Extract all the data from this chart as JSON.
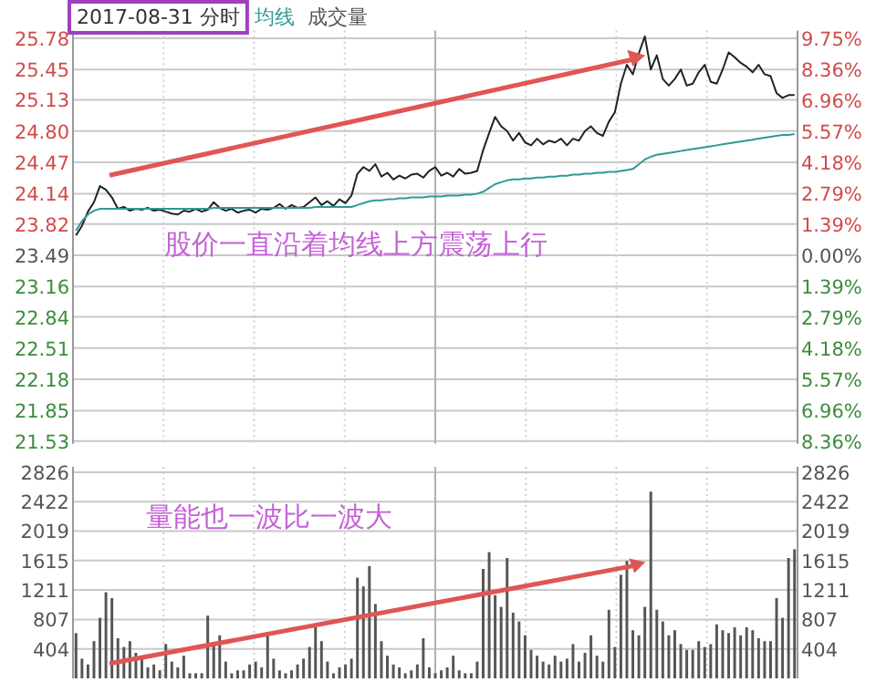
{
  "chart_data": [
    {
      "type": "line",
      "title": "2017-08-31 分时",
      "legend": "top",
      "grid": true,
      "ylim": [
        21.5,
        25.86
      ],
      "y2lim": [
        -8.47,
        10.09
      ],
      "yticks": [
        {
          "value": 25.78,
          "label": "25.78"
        },
        {
          "value": 25.45,
          "label": "25.45"
        },
        {
          "value": 25.13,
          "label": "25.13"
        },
        {
          "value": 24.8,
          "label": "24.80"
        },
        {
          "value": 24.47,
          "label": "24.47"
        },
        {
          "value": 24.14,
          "label": "24.14"
        },
        {
          "value": 23.82,
          "label": "23.82"
        },
        {
          "value": 23.49,
          "label": "23.49"
        },
        {
          "value": 23.16,
          "label": "23.16"
        },
        {
          "value": 22.84,
          "label": "22.84"
        },
        {
          "value": 22.51,
          "label": "22.51"
        },
        {
          "value": 22.18,
          "label": "22.18"
        },
        {
          "value": 21.85,
          "label": "21.85"
        },
        {
          "value": 21.53,
          "label": "21.53"
        }
      ],
      "y2ticks": [
        {
          "value": 9.75,
          "label": "9.75%"
        },
        {
          "value": 8.36,
          "label": "8.36%"
        },
        {
          "value": 6.96,
          "label": "6.96%"
        },
        {
          "value": 5.57,
          "label": "5.57%"
        },
        {
          "value": 4.18,
          "label": "4.18%"
        },
        {
          "value": 2.79,
          "label": "2.79%"
        },
        {
          "value": 1.39,
          "label": "1.39%"
        },
        {
          "value": 0,
          "label": "0.00%"
        },
        {
          "value": -1.39,
          "label": "1.39%"
        },
        {
          "value": -2.79,
          "label": "2.79%"
        },
        {
          "value": -4.18,
          "label": "4.18%"
        },
        {
          "value": -5.57,
          "label": "5.57%"
        },
        {
          "value": -6.96,
          "label": "6.96%"
        },
        {
          "value": -8.36,
          "label": "8.36%"
        }
      ],
      "annotations": [
        "股价一直沿着均线上方震荡上行"
      ],
      "categories": [
        null,
        null,
        null,
        null,
        null,
        null,
        null,
        null,
        null,
        null,
        null,
        null,
        null,
        null,
        null,
        null,
        null,
        null,
        null,
        null,
        null,
        null,
        null,
        null,
        null,
        null,
        null,
        null,
        null,
        null,
        null,
        null,
        null,
        null,
        null,
        null,
        null,
        null,
        null,
        null,
        null,
        null,
        null,
        null,
        null,
        null,
        null,
        null,
        null,
        null,
        null,
        null,
        null,
        null,
        null,
        null,
        null,
        null,
        null,
        null,
        null,
        null,
        null,
        null,
        null,
        null,
        null,
        null,
        null,
        null,
        null,
        null,
        null,
        null,
        null,
        null,
        null,
        null,
        null,
        null,
        null,
        null,
        null,
        null,
        null,
        null,
        null,
        null,
        null,
        null,
        null,
        null,
        null,
        null,
        null,
        null,
        null,
        null,
        null,
        null,
        null,
        null,
        null,
        null,
        null,
        null,
        null,
        null,
        null,
        null,
        null,
        null,
        null,
        null,
        null,
        null,
        null,
        null,
        null,
        null,
        null
      ],
      "series": [
        {
          "color": "#222222",
          "values": [
            23.7,
            23.8,
            23.95,
            24.05,
            24.22,
            24.18,
            24.1,
            23.98,
            24.0,
            23.96,
            23.98,
            23.97,
            23.99,
            23.96,
            23.97,
            23.95,
            23.93,
            23.92,
            23.96,
            23.95,
            23.98,
            23.95,
            23.97,
            24.05,
            23.99,
            23.96,
            23.98,
            23.94,
            23.96,
            23.97,
            23.94,
            23.98,
            23.97,
            23.99,
            24.03,
            23.98,
            24.02,
            23.99,
            24.0,
            24.05,
            24.1,
            24.02,
            24.06,
            24.01,
            24.08,
            24.04,
            24.12,
            24.35,
            24.42,
            24.38,
            24.45,
            24.32,
            24.36,
            24.29,
            24.33,
            24.3,
            24.34,
            24.35,
            24.31,
            24.38,
            24.42,
            24.33,
            24.36,
            24.32,
            24.4,
            24.35,
            24.36,
            24.38,
            24.6,
            24.78,
            24.95,
            24.85,
            24.8,
            24.7,
            24.78,
            24.68,
            24.65,
            24.72,
            24.66,
            24.7,
            24.68,
            24.72,
            24.65,
            24.72,
            24.7,
            24.8,
            24.85,
            24.78,
            24.75,
            24.9,
            25.0,
            25.3,
            25.5,
            25.4,
            25.62,
            25.8,
            25.45,
            25.6,
            25.35,
            25.28,
            25.35,
            25.45,
            25.28,
            25.3,
            25.42,
            25.5,
            25.32,
            25.3,
            25.45,
            25.63,
            25.58,
            25.52,
            25.48,
            25.42,
            25.5,
            25.4,
            25.38,
            25.2,
            25.15,
            25.18,
            25.18
          ]
        },
        {
          "name": "均线",
          "color": "#2f9a96",
          "values": [
            23.75,
            23.85,
            23.92,
            23.96,
            23.98,
            23.98,
            23.98,
            23.98,
            23.98,
            23.98,
            23.98,
            23.98,
            23.98,
            23.98,
            23.98,
            23.98,
            23.98,
            23.98,
            23.98,
            23.98,
            23.98,
            23.98,
            23.98,
            23.99,
            23.99,
            23.99,
            23.99,
            23.99,
            23.99,
            23.99,
            23.99,
            23.99,
            23.99,
            23.99,
            23.99,
            23.99,
            23.99,
            23.99,
            23.99,
            23.99,
            24.0,
            24.0,
            24.0,
            24.0,
            24.0,
            24.0,
            24.0,
            24.02,
            24.04,
            24.06,
            24.07,
            24.07,
            24.08,
            24.08,
            24.09,
            24.09,
            24.1,
            24.1,
            24.1,
            24.11,
            24.11,
            24.11,
            24.12,
            24.12,
            24.12,
            24.13,
            24.13,
            24.14,
            24.16,
            24.2,
            24.24,
            24.26,
            24.28,
            24.29,
            24.29,
            24.3,
            24.3,
            24.31,
            24.31,
            24.32,
            24.32,
            24.33,
            24.33,
            24.34,
            24.34,
            24.35,
            24.35,
            24.36,
            24.36,
            24.37,
            24.37,
            24.38,
            24.39,
            24.4,
            24.45,
            24.5,
            24.53,
            24.55,
            24.56,
            24.57,
            24.58,
            24.59,
            24.6,
            24.61,
            24.62,
            24.63,
            24.64,
            24.65,
            24.66,
            24.67,
            24.68,
            24.69,
            24.7,
            24.71,
            24.72,
            24.73,
            24.74,
            24.75,
            24.76,
            24.76,
            24.77
          ]
        }
      ]
    },
    {
      "type": "bar",
      "grid": true,
      "legend": "top",
      "ylim": [
        0,
        2900
      ],
      "y2lim": [
        0,
        2900
      ],
      "yticks": [
        404,
        807,
        1211,
        1615,
        2019,
        2422,
        2826
      ],
      "y2ticks": [
        404,
        807,
        1211,
        1615,
        2019,
        2422,
        2826
      ],
      "annotations": [
        "量能也一波比一波大"
      ],
      "categories": [
        null,
        null,
        null,
        null,
        null,
        null,
        null,
        null,
        null,
        null,
        null,
        null,
        null,
        null,
        null,
        null,
        null,
        null,
        null,
        null,
        null,
        null,
        null,
        null,
        null,
        null,
        null,
        null,
        null,
        null,
        null,
        null,
        null,
        null,
        null,
        null,
        null,
        null,
        null,
        null,
        null,
        null,
        null,
        null,
        null,
        null,
        null,
        null,
        null,
        null,
        null,
        null,
        null,
        null,
        null,
        null,
        null,
        null,
        null,
        null,
        null,
        null,
        null,
        null,
        null,
        null,
        null,
        null,
        null,
        null,
        null,
        null,
        null,
        null,
        null,
        null,
        null,
        null,
        null,
        null,
        null,
        null,
        null,
        null,
        null,
        null,
        null,
        null,
        null,
        null,
        null,
        null,
        null,
        null,
        null,
        null,
        null,
        null,
        null,
        null,
        null,
        null,
        null,
        null,
        null,
        null,
        null,
        null,
        null,
        null,
        null,
        null,
        null,
        null,
        null,
        null,
        null,
        null,
        null,
        null,
        null
      ],
      "series": [
        {
          "name": "成交量",
          "color": "#555555",
          "values": [
            620,
            270,
            190,
            510,
            830,
            1180,
            1100,
            550,
            430,
            510,
            350,
            310,
            150,
            190,
            110,
            470,
            230,
            150,
            310,
            70,
            70,
            70,
            860,
            470,
            590,
            230,
            70,
            110,
            110,
            190,
            230,
            150,
            590,
            270,
            110,
            70,
            110,
            190,
            270,
            430,
            700,
            510,
            230,
            70,
            150,
            190,
            270,
            1380,
            1260,
            1540,
            1020,
            510,
            310,
            190,
            150,
            70,
            110,
            190,
            550,
            150,
            70,
            110,
            150,
            310,
            110,
            70,
            70,
            230,
            1500,
            1730,
            1140,
            980,
            1650,
            900,
            780,
            590,
            390,
            310,
            230,
            190,
            310,
            230,
            270,
            470,
            230,
            350,
            590,
            310,
            230,
            940,
            430,
            1420,
            1610,
            660,
            590,
            980,
            2560,
            940,
            780,
            590,
            660,
            470,
            390,
            390,
            510,
            430,
            470,
            740,
            660,
            620,
            700,
            590,
            700,
            660,
            550,
            510,
            510,
            1100,
            830,
            1650,
            1770
          ]
        }
      ]
    }
  ]
}
